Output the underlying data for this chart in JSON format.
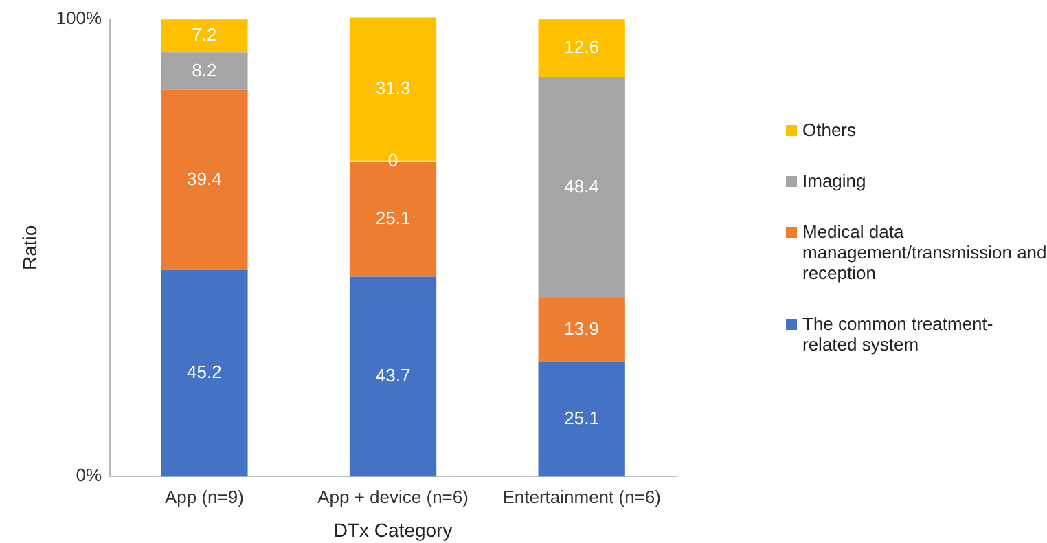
{
  "chart_data": {
    "type": "bar",
    "stacked": true,
    "xlabel": "DTx Category",
    "ylabel": "Ratio",
    "categories": [
      "App (n=9)",
      "App + device (n=6)",
      "Entertainment (n=6)"
    ],
    "series": [
      {
        "name": "The common treatment-related system",
        "color": "#4472c4",
        "values": [
          45.2,
          43.7,
          25.1
        ]
      },
      {
        "name": "Medical data management/transmission and reception",
        "color": "#ed7d31",
        "values": [
          39.4,
          25.1,
          13.9
        ]
      },
      {
        "name": "Imaging",
        "color": "#a5a5a5",
        "values": [
          8.2,
          0,
          48.4
        ]
      },
      {
        "name": "Others",
        "color": "#ffc000",
        "values": [
          7.2,
          31.3,
          12.6
        ]
      }
    ],
    "ylim": [
      0,
      100.1
    ],
    "yticks": [
      {
        "value": 0,
        "label": "0%"
      },
      {
        "value": 100,
        "label": "100%"
      }
    ],
    "grid": false,
    "legend": "right",
    "data_labels": true
  }
}
